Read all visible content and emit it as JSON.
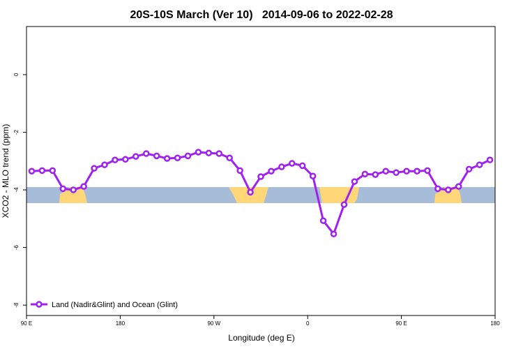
{
  "chart_data": {
    "type": "line",
    "title": "20S-10S March (Ver 10)   2014-09-06 to 2022-02-28",
    "x_label": "Longitude (deg E)",
    "y_label": "XCO2 - MLO trend (ppm)",
    "x": [
      95,
      105,
      115,
      125,
      135,
      145,
      155,
      165,
      175,
      185,
      195,
      205,
      215,
      225,
      235,
      245,
      255,
      265,
      275,
      285,
      295,
      305,
      315,
      325,
      335,
      345,
      355,
      365,
      375,
      385,
      395,
      405,
      415,
      425,
      435,
      445,
      455,
      465,
      475,
      485,
      495,
      505,
      515,
      525,
      535
    ],
    "series": [
      {
        "name": "Land (Nadir&Glint) and Ocean (Glint)",
        "color": "#a020f0",
        "values": [
          -3.35,
          -3.33,
          -3.33,
          -3.96,
          -4.0,
          -3.88,
          -3.25,
          -3.13,
          -2.96,
          -2.94,
          -2.84,
          -2.74,
          -2.82,
          -2.91,
          -2.89,
          -2.82,
          -2.69,
          -2.72,
          -2.74,
          -2.89,
          -3.33,
          -4.08,
          -3.54,
          -3.35,
          -3.2,
          -3.08,
          -3.16,
          -3.52,
          -5.07,
          -5.53,
          -4.51,
          -3.71,
          -3.45,
          -3.47,
          -3.35,
          -3.4,
          -3.35,
          -3.35,
          -3.33,
          -3.96,
          -4.0,
          -3.88,
          -3.28,
          -3.13,
          -2.96
        ]
      }
    ],
    "xlim": [
      90,
      540
    ],
    "xticks": [
      {
        "value": 90,
        "label": "90 E"
      },
      180,
      {
        "value": 270,
        "label": "90 W"
      },
      {
        "value": 360,
        "label": "0"
      },
      {
        "value": 450,
        "label": "90 E"
      },
      {
        "value": 540,
        "label": "180"
      }
    ],
    "ylim": [
      -8.36,
      1.67
    ],
    "yticks": [
      0,
      -2,
      -4,
      -6,
      -8
    ],
    "legend": "bottom-left"
  }
}
